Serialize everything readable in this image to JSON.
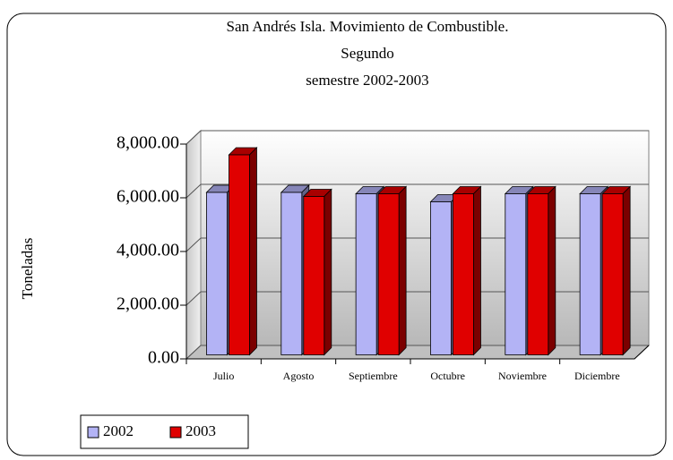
{
  "chart_data": {
    "type": "bar3d",
    "title": [
      "San Andrés Isla. Movimiento de Combustible.",
      "Segundo",
      "semestre 2002-2003"
    ],
    "y_label": "Toneladas",
    "categories": [
      "Julio",
      "Agosto",
      "Septiembre",
      "Octubre",
      "Noviembre",
      "Diciembre"
    ],
    "series": [
      {
        "name": "2002",
        "color": "#b3b3f5",
        "values": [
          6050,
          6050,
          6000,
          5700,
          6000,
          6000
        ]
      },
      {
        "name": "2003",
        "color": "#e00000",
        "values": [
          7450,
          5900,
          6000,
          6000,
          6000,
          6000
        ]
      }
    ],
    "ylim": [
      0,
      8000
    ],
    "yticks": [
      {
        "value": 0,
        "label": "0.00"
      },
      {
        "value": 2000,
        "label": "2,000.00"
      },
      {
        "value": 4000,
        "label": "4,000.00"
      },
      {
        "value": 6000,
        "label": "6,000.00"
      },
      {
        "value": 8000,
        "label": "8,000.00"
      }
    ],
    "grid": true,
    "legend": "bottom-left"
  }
}
